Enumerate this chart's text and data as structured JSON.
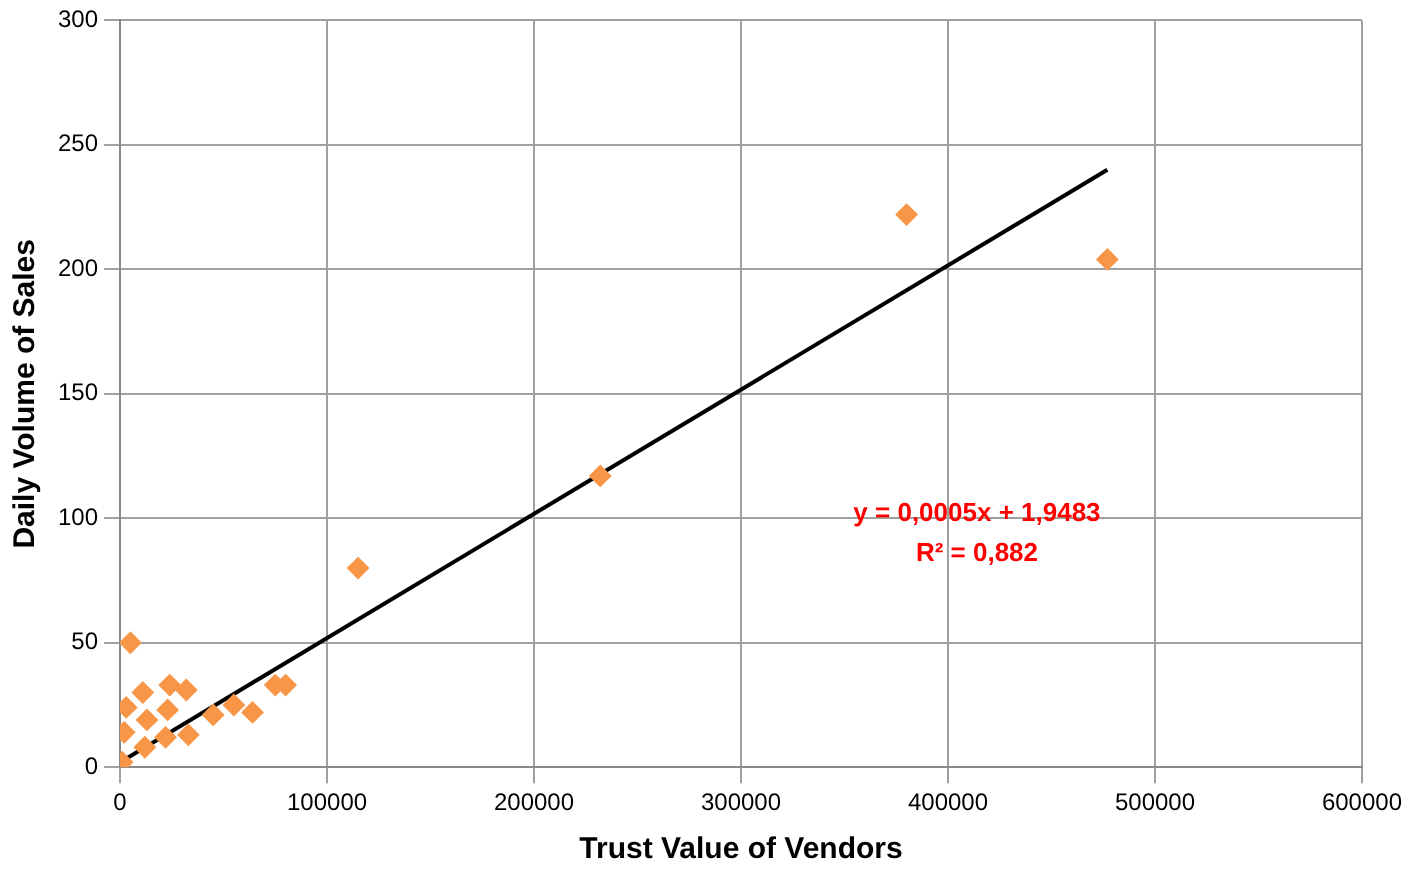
{
  "chart_data": {
    "type": "scatter",
    "xlabel": "Trust Value of Vendors",
    "ylabel": "Daily Volume of Sales",
    "xlim": [
      0,
      600000
    ],
    "xticks": [
      0,
      100000,
      200000,
      300000,
      400000,
      500000,
      600000
    ],
    "ylim": [
      0,
      300
    ],
    "yticks": [
      0,
      50,
      100,
      150,
      200,
      250,
      300
    ],
    "grid": true,
    "legend": false,
    "marker": "diamond",
    "annotations": [
      "y = 0,0005x + 1,9483",
      "R² = 0,882"
    ],
    "series": [
      {
        "color": "#f79646",
        "x": [
          380000,
          477000,
          232000,
          115000,
          5000,
          75000,
          80000,
          64000,
          55000,
          45000,
          33000,
          32000,
          24000,
          11000,
          1000,
          2000,
          3000,
          12000,
          13000,
          22000,
          23000
        ],
        "values": [
          222,
          204,
          117,
          80,
          50,
          33,
          33,
          22,
          25,
          21,
          13,
          31,
          33,
          30,
          2,
          14,
          24,
          8,
          19,
          12,
          23
        ]
      },
      {
        "type": "line",
        "color": "#000000",
        "marker": "none",
        "x": [
          0,
          477000
        ],
        "values": [
          2,
          240
        ]
      }
    ]
  }
}
